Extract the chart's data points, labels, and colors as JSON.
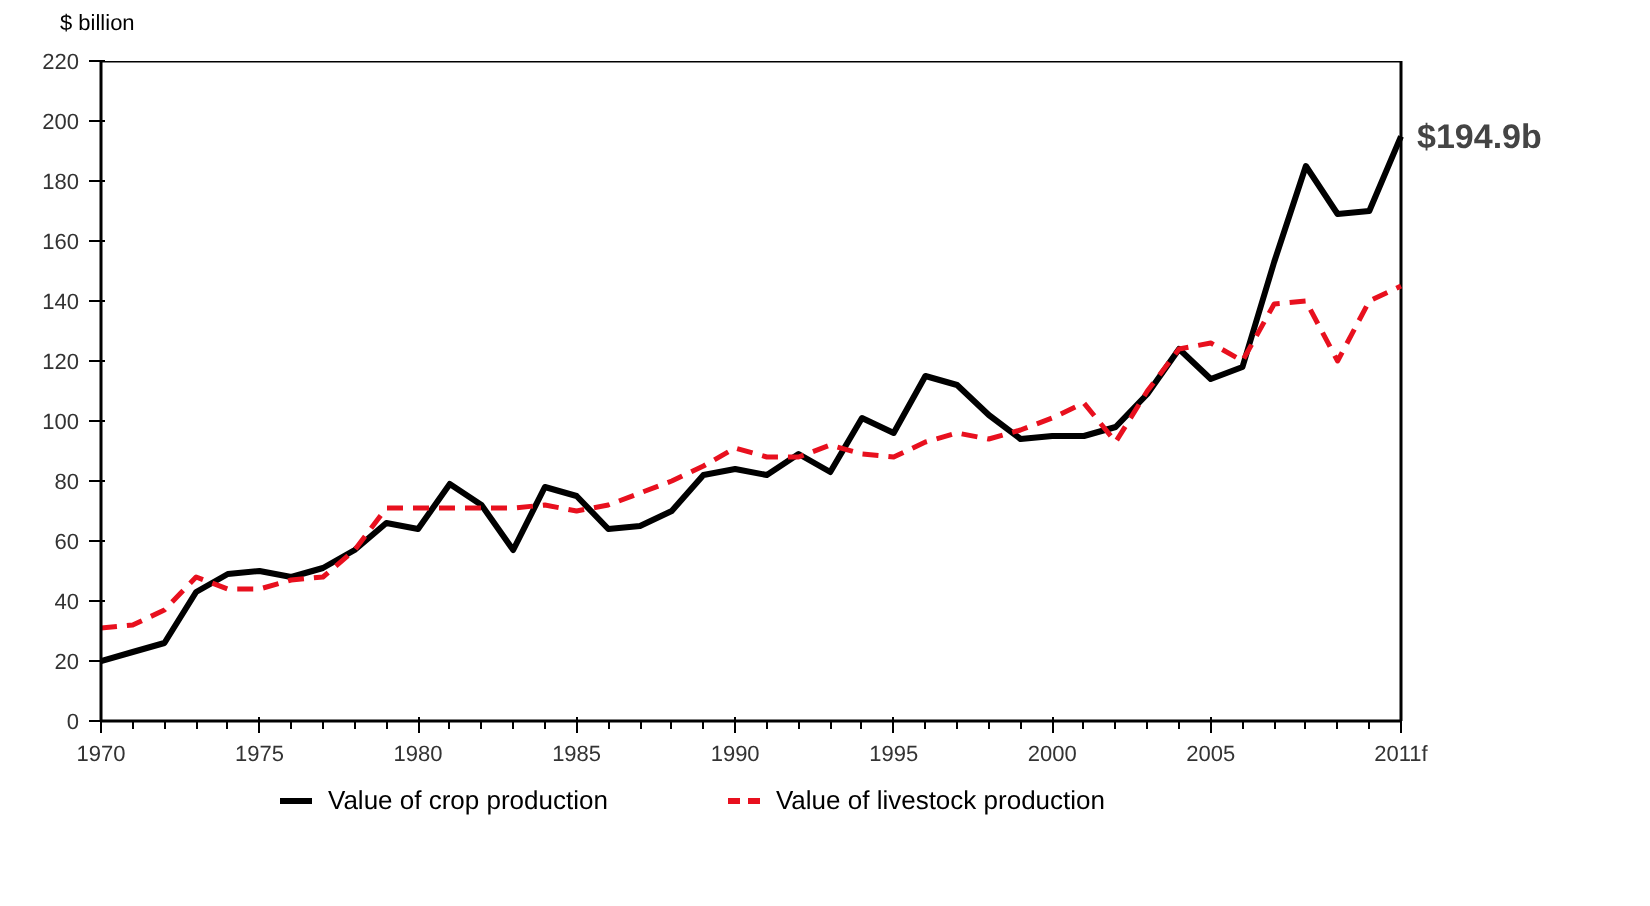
{
  "chart_data": {
    "type": "line",
    "ylabel": "$ billion",
    "x": [
      1970,
      1971,
      1972,
      1973,
      1974,
      1975,
      1976,
      1977,
      1978,
      1979,
      1980,
      1981,
      1982,
      1983,
      1984,
      1985,
      1986,
      1987,
      1988,
      1989,
      1990,
      1991,
      1992,
      1993,
      1994,
      1995,
      1996,
      1997,
      1998,
      1999,
      2000,
      2001,
      2002,
      2003,
      2004,
      2005,
      2006,
      2007,
      2008,
      2009,
      2010,
      2011
    ],
    "series": [
      {
        "name": "Value of crop production",
        "color": "#000000",
        "line_style": "solid",
        "values": [
          20,
          23,
          26,
          43,
          49,
          50,
          48,
          51,
          57,
          66,
          64,
          79,
          72,
          57,
          78,
          75,
          64,
          65,
          70,
          82,
          84,
          82,
          89,
          83,
          101,
          96,
          115,
          112,
          102,
          94,
          95,
          95,
          98,
          109,
          124,
          114,
          118,
          153,
          185,
          169,
          170,
          194.9
        ]
      },
      {
        "name": "Value of livestock production",
        "color": "#e8101e",
        "line_style": "dashed",
        "values": [
          31,
          32,
          37,
          48,
          44,
          44,
          47,
          48,
          57,
          71,
          71,
          71,
          71,
          71,
          72,
          70,
          72,
          76,
          80,
          85,
          91,
          88,
          88,
          92,
          89,
          88,
          93,
          96,
          94,
          97,
          101,
          106,
          93,
          110,
          124,
          126,
          120,
          139,
          140,
          120,
          140,
          145
        ]
      }
    ],
    "xlim": [
      1970,
      2011
    ],
    "xticks": [
      1970,
      1975,
      1980,
      1985,
      1990,
      1995,
      2000,
      2005,
      {
        "value": 2011,
        "label": "2011f"
      }
    ],
    "ylim": [
      0,
      220
    ],
    "yticks": [
      0,
      20,
      40,
      60,
      80,
      100,
      120,
      140,
      160,
      180,
      200,
      220
    ],
    "annotations": [
      {
        "text": "$194.9b",
        "x": 2011,
        "y": 194.9
      }
    ],
    "grid": false,
    "legend": "bottom",
    "marker": "none"
  }
}
